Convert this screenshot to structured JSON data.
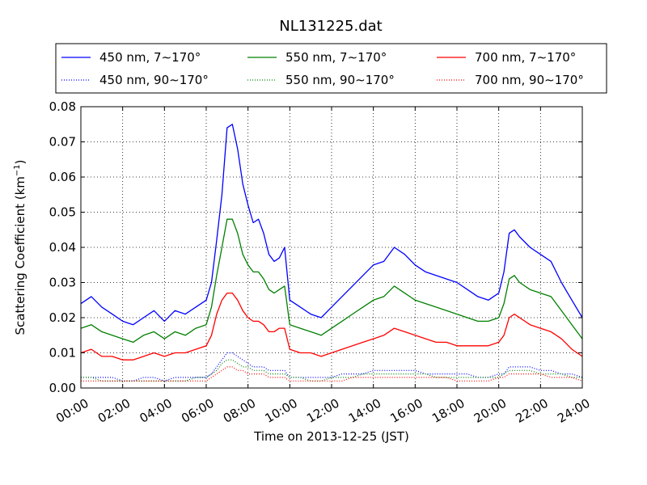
{
  "chart_data": {
    "type": "line",
    "title": "NL131225.dat",
    "xlabel": "Time on 2013-12-25 (JST)",
    "ylabel_text": "Scattering Coefficient (km",
    "ylabel_sup": "−1",
    "ylabel_close": ")",
    "xlim": [
      "00:00",
      "24:00"
    ],
    "ylim": [
      0,
      0.08
    ],
    "x_ticks": [
      "00:00",
      "02:00",
      "04:00",
      "06:00",
      "08:00",
      "10:00",
      "12:00",
      "14:00",
      "16:00",
      "18:00",
      "20:00",
      "22:00",
      "24:00"
    ],
    "y_ticks": [
      "0.00",
      "0.01",
      "0.02",
      "0.03",
      "0.04",
      "0.05",
      "0.06",
      "0.07",
      "0.08"
    ],
    "grid": true,
    "legend_position": "top",
    "x": [
      "00:00",
      "00:30",
      "01:00",
      "01:30",
      "02:00",
      "02:30",
      "03:00",
      "03:30",
      "04:00",
      "04:30",
      "05:00",
      "05:30",
      "06:00",
      "06:15",
      "06:30",
      "06:45",
      "07:00",
      "07:15",
      "07:30",
      "07:45",
      "08:00",
      "08:15",
      "08:30",
      "08:45",
      "09:00",
      "09:15",
      "09:30",
      "09:45",
      "10:00",
      "10:30",
      "11:00",
      "11:30",
      "12:00",
      "12:30",
      "13:00",
      "13:30",
      "14:00",
      "14:30",
      "15:00",
      "15:30",
      "16:00",
      "16:30",
      "17:00",
      "17:30",
      "18:00",
      "18:30",
      "19:00",
      "19:30",
      "20:00",
      "20:15",
      "20:30",
      "20:45",
      "21:00",
      "21:30",
      "22:00",
      "22:30",
      "23:00",
      "23:30",
      "24:00"
    ],
    "series": [
      {
        "name": "450 nm, 7∼170°",
        "color": "#0000ff",
        "style": "solid",
        "values": [
          0.024,
          0.026,
          0.023,
          0.021,
          0.019,
          0.018,
          0.02,
          0.022,
          0.019,
          0.022,
          0.021,
          0.023,
          0.025,
          0.03,
          0.042,
          0.055,
          0.074,
          0.075,
          0.068,
          0.058,
          0.052,
          0.047,
          0.048,
          0.044,
          0.038,
          0.036,
          0.037,
          0.04,
          0.025,
          0.023,
          0.021,
          0.02,
          0.023,
          0.026,
          0.029,
          0.032,
          0.035,
          0.036,
          0.04,
          0.038,
          0.035,
          0.033,
          0.032,
          0.031,
          0.03,
          0.028,
          0.026,
          0.025,
          0.027,
          0.033,
          0.044,
          0.045,
          0.043,
          0.04,
          0.038,
          0.036,
          0.03,
          0.025,
          0.02
        ]
      },
      {
        "name": "550 nm, 7∼170°",
        "color": "#008000",
        "style": "solid",
        "values": [
          0.017,
          0.018,
          0.016,
          0.015,
          0.014,
          0.013,
          0.015,
          0.016,
          0.014,
          0.016,
          0.015,
          0.017,
          0.018,
          0.023,
          0.032,
          0.04,
          0.048,
          0.048,
          0.044,
          0.038,
          0.035,
          0.033,
          0.033,
          0.031,
          0.028,
          0.027,
          0.028,
          0.029,
          0.018,
          0.017,
          0.016,
          0.015,
          0.017,
          0.019,
          0.021,
          0.023,
          0.025,
          0.026,
          0.029,
          0.027,
          0.025,
          0.024,
          0.023,
          0.022,
          0.021,
          0.02,
          0.019,
          0.019,
          0.02,
          0.024,
          0.031,
          0.032,
          0.03,
          0.028,
          0.027,
          0.026,
          0.022,
          0.018,
          0.014
        ]
      },
      {
        "name": "700 nm, 7∼170°",
        "color": "#ff0000",
        "style": "solid",
        "values": [
          0.01,
          0.011,
          0.009,
          0.009,
          0.008,
          0.008,
          0.009,
          0.01,
          0.009,
          0.01,
          0.01,
          0.011,
          0.012,
          0.015,
          0.021,
          0.025,
          0.027,
          0.027,
          0.025,
          0.022,
          0.02,
          0.019,
          0.019,
          0.018,
          0.016,
          0.016,
          0.017,
          0.017,
          0.011,
          0.01,
          0.01,
          0.009,
          0.01,
          0.011,
          0.012,
          0.013,
          0.014,
          0.015,
          0.017,
          0.016,
          0.015,
          0.014,
          0.013,
          0.013,
          0.012,
          0.012,
          0.012,
          0.012,
          0.013,
          0.015,
          0.02,
          0.021,
          0.02,
          0.018,
          0.017,
          0.016,
          0.014,
          0.011,
          0.009
        ]
      },
      {
        "name": "450 nm, 90∼170°",
        "color": "#0000ff",
        "style": "dotted",
        "values": [
          0.003,
          0.003,
          0.003,
          0.003,
          0.002,
          0.002,
          0.003,
          0.003,
          0.002,
          0.003,
          0.003,
          0.003,
          0.003,
          0.004,
          0.006,
          0.008,
          0.01,
          0.01,
          0.009,
          0.008,
          0.007,
          0.006,
          0.006,
          0.006,
          0.005,
          0.005,
          0.005,
          0.005,
          0.003,
          0.003,
          0.003,
          0.003,
          0.003,
          0.004,
          0.004,
          0.004,
          0.005,
          0.005,
          0.005,
          0.005,
          0.005,
          0.004,
          0.004,
          0.004,
          0.004,
          0.004,
          0.003,
          0.003,
          0.004,
          0.004,
          0.006,
          0.006,
          0.006,
          0.006,
          0.005,
          0.005,
          0.004,
          0.004,
          0.003
        ]
      },
      {
        "name": "550 nm, 90∼170°",
        "color": "#008000",
        "style": "dotted",
        "values": [
          0.003,
          0.003,
          0.002,
          0.002,
          0.002,
          0.002,
          0.002,
          0.002,
          0.002,
          0.002,
          0.002,
          0.003,
          0.003,
          0.004,
          0.005,
          0.007,
          0.008,
          0.008,
          0.007,
          0.006,
          0.006,
          0.005,
          0.005,
          0.005,
          0.004,
          0.004,
          0.004,
          0.004,
          0.003,
          0.003,
          0.002,
          0.002,
          0.003,
          0.003,
          0.003,
          0.004,
          0.004,
          0.004,
          0.004,
          0.004,
          0.004,
          0.004,
          0.003,
          0.003,
          0.003,
          0.003,
          0.003,
          0.003,
          0.003,
          0.004,
          0.005,
          0.005,
          0.005,
          0.005,
          0.004,
          0.004,
          0.004,
          0.003,
          0.003
        ]
      },
      {
        "name": "700 nm, 90∼170°",
        "color": "#ff0000",
        "style": "dotted",
        "values": [
          0.002,
          0.002,
          0.002,
          0.002,
          0.002,
          0.002,
          0.002,
          0.002,
          0.002,
          0.002,
          0.002,
          0.002,
          0.002,
          0.003,
          0.004,
          0.005,
          0.006,
          0.006,
          0.005,
          0.005,
          0.004,
          0.004,
          0.004,
          0.004,
          0.003,
          0.003,
          0.003,
          0.003,
          0.002,
          0.002,
          0.002,
          0.002,
          0.002,
          0.002,
          0.003,
          0.003,
          0.003,
          0.003,
          0.003,
          0.003,
          0.003,
          0.003,
          0.003,
          0.003,
          0.002,
          0.002,
          0.002,
          0.002,
          0.003,
          0.003,
          0.004,
          0.004,
          0.004,
          0.004,
          0.004,
          0.003,
          0.003,
          0.003,
          0.002
        ]
      }
    ]
  }
}
